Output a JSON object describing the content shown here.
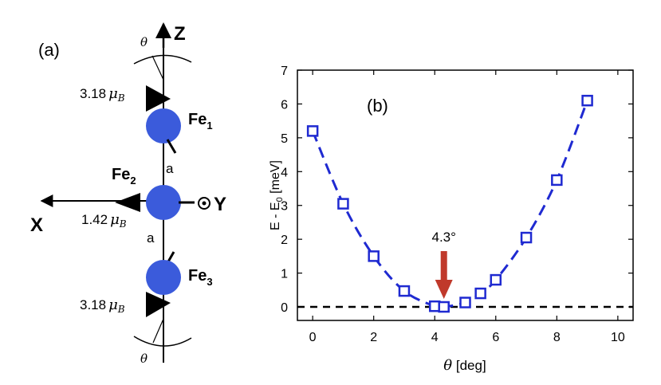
{
  "panel_a": {
    "label": "(a)",
    "axis_z": "Z",
    "axis_x": "X",
    "axis_y": "Y",
    "theta": "θ",
    "bond": "a",
    "fe_prefix": "Fe",
    "atoms": [
      {
        "index": "1",
        "moment_value": "3.18",
        "mu": "μ",
        "mu_sub": "B"
      },
      {
        "index": "2",
        "moment_value": "1.42",
        "mu": "μ",
        "mu_sub": "B"
      },
      {
        "index": "3",
        "moment_value": "3.18",
        "mu": "μ",
        "mu_sub": "B"
      }
    ],
    "colors": {
      "atom": "#3b5bdb",
      "line": "#000000"
    }
  },
  "chart_data": {
    "type": "line",
    "panel_label": "(b)",
    "xlabel": "θ [deg]",
    "ylabel": "E - E0 [meV]",
    "ylabel_main": "E - E",
    "ylabel_sub": "0",
    "ylabel_unit": " [meV]",
    "xlabel_symbol": "θ",
    "xlabel_unit": " [deg]",
    "xlim": [
      -0.5,
      10.5
    ],
    "ylim": [
      -0.4,
      7
    ],
    "xticks": [
      "0",
      "2",
      "4",
      "6",
      "8",
      "10"
    ],
    "yticks": [
      "0",
      "1",
      "2",
      "3",
      "4",
      "5",
      "6",
      "7"
    ],
    "series": [
      {
        "x": [
          0,
          1,
          2,
          3,
          4,
          4.3,
          5,
          5.5,
          6,
          7,
          8,
          9
        ],
        "y": [
          5.2,
          3.05,
          1.5,
          0.47,
          0.02,
          0.0,
          0.13,
          0.4,
          0.8,
          2.05,
          3.75,
          6.1
        ],
        "color": "#1f2ad1",
        "marker": "square",
        "linestyle": "dashed"
      }
    ],
    "reference_line": {
      "y": 0,
      "color": "#000000",
      "linestyle": "dashed"
    },
    "annotation": {
      "text": "4.3°",
      "x": 4.3,
      "arrow_color": "#c0392b"
    }
  }
}
